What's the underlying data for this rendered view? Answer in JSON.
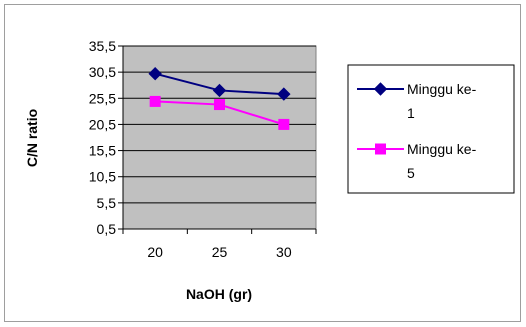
{
  "chart_data": {
    "type": "line",
    "title": "",
    "xlabel": "NaOH (gr)",
    "ylabel": "C/N ratio",
    "categories": [
      "20",
      "25",
      "30"
    ],
    "yticks": [
      "0,5",
      "5,5",
      "10,5",
      "15,5",
      "20,5",
      "25,5",
      "30,5",
      "35,5"
    ],
    "ylim": [
      0.5,
      35.5
    ],
    "grid": true,
    "legend_position": "right",
    "plot_background": "#c0c0c0",
    "series": [
      {
        "name": "Minggu ke-1",
        "legend_lines": [
          "Minggu ke-",
          "1"
        ],
        "values": [
          30.2,
          27.0,
          26.3
        ],
        "color": "#000080",
        "marker": "diamond"
      },
      {
        "name": "Minggu ke-5",
        "legend_lines": [
          "Minggu ke-",
          "5"
        ],
        "values": [
          24.9,
          24.3,
          20.5
        ],
        "color": "#ff00ff",
        "marker": "square"
      }
    ]
  }
}
